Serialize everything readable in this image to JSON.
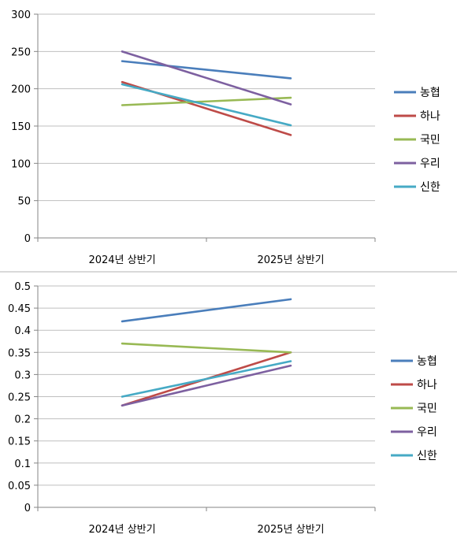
{
  "chart_data": [
    {
      "type": "line",
      "categories": [
        "2024년 상반기",
        "2025년 상반기"
      ],
      "yticks": [
        "0",
        "50",
        "100",
        "150",
        "200",
        "250",
        "300"
      ],
      "ylim": [
        0,
        300
      ],
      "grid": true,
      "legend": "right",
      "series": [
        {
          "name": "농협",
          "color": "#4a7ebb",
          "values": [
            237,
            214
          ]
        },
        {
          "name": "하나",
          "color": "#be4b48",
          "values": [
            209,
            138
          ]
        },
        {
          "name": "국민",
          "color": "#98b954",
          "values": [
            178,
            188
          ]
        },
        {
          "name": "우리",
          "color": "#7d60a0",
          "values": [
            250,
            179
          ]
        },
        {
          "name": "신한",
          "color": "#46aac5",
          "values": [
            206,
            151
          ]
        }
      ]
    },
    {
      "type": "line",
      "categories": [
        "2024년 상반기",
        "2025년 상반기"
      ],
      "yticks": [
        "0",
        "0.05",
        "0.1",
        "0.15",
        "0.2",
        "0.25",
        "0.3",
        "0.35",
        "0.4",
        "0.45",
        "0.5"
      ],
      "ylim": [
        0,
        0.5
      ],
      "grid": true,
      "legend": "right",
      "series": [
        {
          "name": "농협",
          "color": "#4a7ebb",
          "values": [
            0.42,
            0.47
          ]
        },
        {
          "name": "하나",
          "color": "#be4b48",
          "values": [
            0.23,
            0.35
          ]
        },
        {
          "name": "국민",
          "color": "#98b954",
          "values": [
            0.37,
            0.35
          ]
        },
        {
          "name": "우리",
          "color": "#7d60a0",
          "values": [
            0.23,
            0.32
          ]
        },
        {
          "name": "신한",
          "color": "#46aac5",
          "values": [
            0.25,
            0.33
          ]
        }
      ]
    }
  ]
}
